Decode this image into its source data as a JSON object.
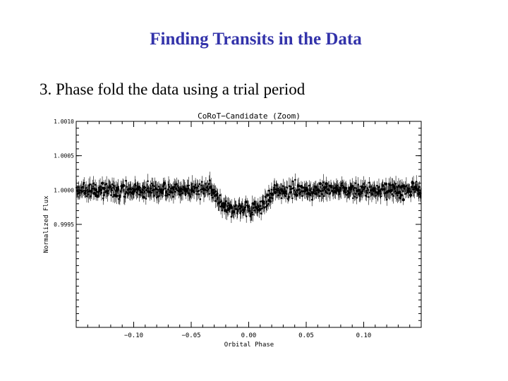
{
  "slide": {
    "title": "Finding Transits in the Data",
    "bullet": "3.  Phase fold the data using a trial period"
  },
  "chart_data": {
    "type": "scatter",
    "title": "CoRoT−Candidate (Zoom)",
    "xlabel": "Orbital Phase",
    "ylabel": "Normalized Flux",
    "xlim": [
      -0.15,
      0.15
    ],
    "ylim": [
      0.998,
      1.001
    ],
    "x_ticks": [
      -0.1,
      -0.05,
      0.0,
      0.05,
      0.1
    ],
    "x_tick_labels": [
      "−0.10",
      "−0.05",
      "0.00",
      "0.05",
      "0.10"
    ],
    "y_ticks": [
      1.001,
      1.0005,
      1.0,
      0.9995
    ],
    "y_tick_labels": [
      "1.0010",
      "1.0005",
      "1.0000",
      "0.9995"
    ],
    "error_bars": true,
    "marker_color": "#000000",
    "baseline_flux": 1.0,
    "transit": {
      "center_phase": -0.005,
      "half_width_phase": 0.028,
      "ingress_phase": 0.012,
      "depth": 0.00027
    },
    "scatter_sigma": 9e-05,
    "n_points": 700
  }
}
